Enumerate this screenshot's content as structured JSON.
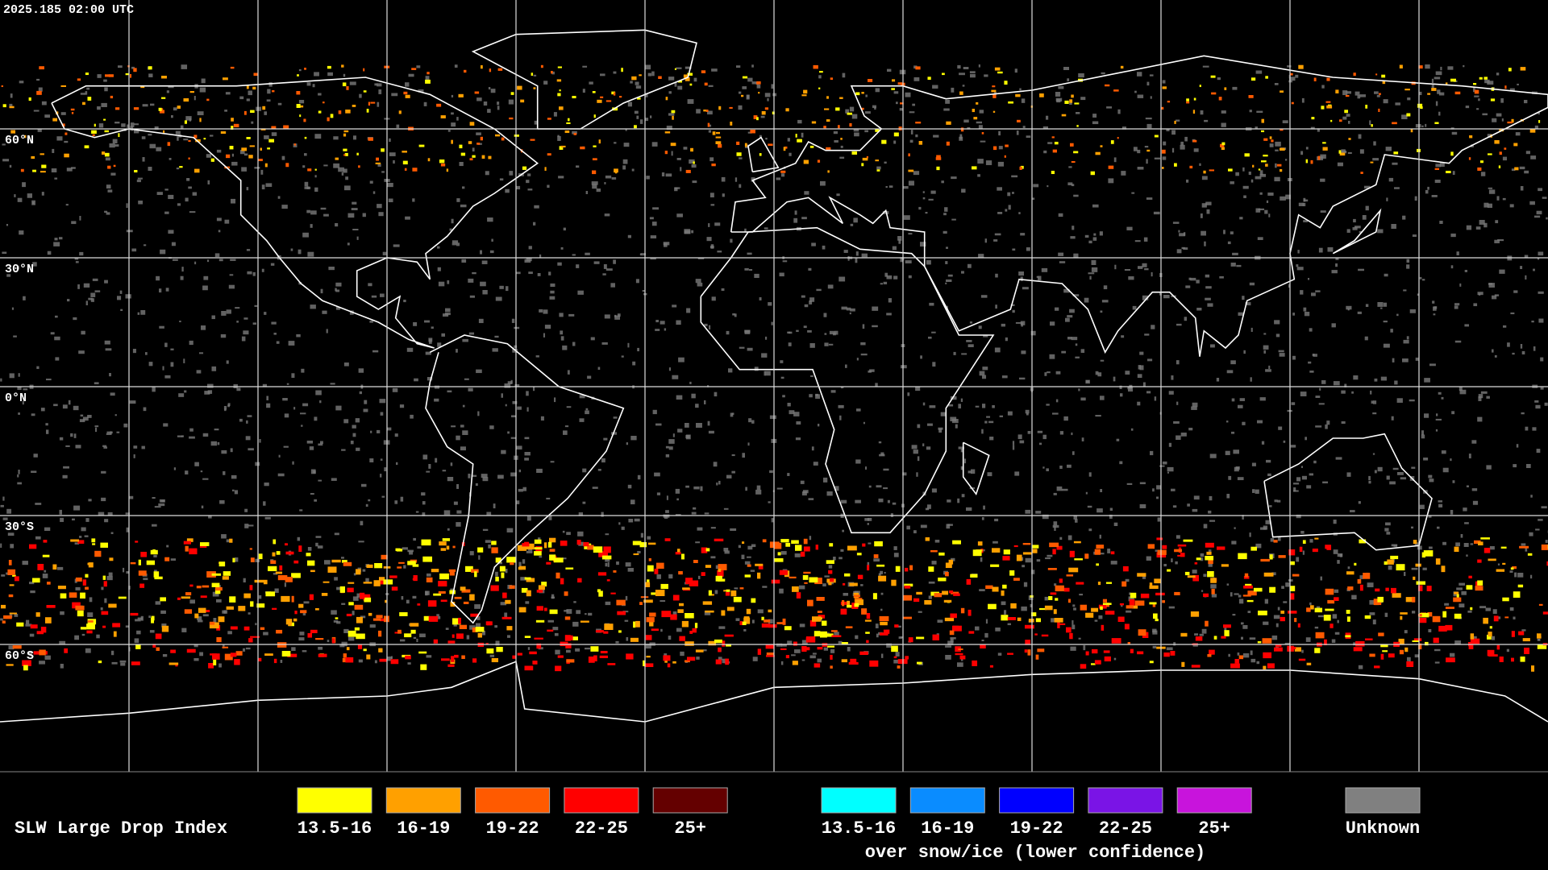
{
  "header": {
    "timestamp": "2025.185 02:00 UTC"
  },
  "map": {
    "latitude_labels": [
      "60°N",
      "30°N",
      "0°N",
      "30°S",
      "60°S"
    ]
  },
  "legend": {
    "title": "SLW Large Drop Index",
    "items": [
      {
        "label": "13.5-16",
        "color": "#ffff00"
      },
      {
        "label": "16-19",
        "color": "#ffa000"
      },
      {
        "label": "19-22",
        "color": "#ff5a00"
      },
      {
        "label": "22-25",
        "color": "#ff0000"
      },
      {
        "label": "25+",
        "color": "#640000"
      }
    ],
    "snow_items": [
      {
        "label": "13.5-16",
        "color": "#00ffff"
      },
      {
        "label": "16-19",
        "color": "#0a8cff"
      },
      {
        "label": "19-22",
        "color": "#0000ff"
      },
      {
        "label": "22-25",
        "color": "#7a14e6"
      },
      {
        "label": "25+",
        "color": "#c814dc"
      }
    ],
    "snow_caption": "over snow/ice (lower confidence)",
    "unknown": {
      "label": "Unknown",
      "color": "#808080"
    }
  }
}
